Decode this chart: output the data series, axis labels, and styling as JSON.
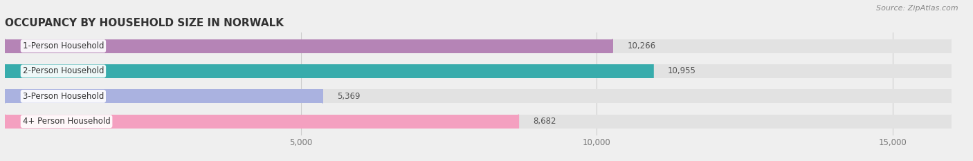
{
  "title": "OCCUPANCY BY HOUSEHOLD SIZE IN NORWALK",
  "source": "Source: ZipAtlas.com",
  "categories": [
    "1-Person Household",
    "2-Person Household",
    "3-Person Household",
    "4+ Person Household"
  ],
  "values": [
    10266,
    10955,
    5369,
    8682
  ],
  "bar_colors": [
    "#b584b6",
    "#38acac",
    "#aab2e0",
    "#f4a0c0"
  ],
  "background_color": "#efefef",
  "bar_bg_color": "#e2e2e2",
  "xlim": [
    0,
    16000
  ],
  "xticks": [
    5000,
    10000,
    15000
  ],
  "xtick_labels": [
    "5,000",
    "10,000",
    "15,000"
  ],
  "value_labels": [
    "10,266",
    "10,955",
    "5,369",
    "8,682"
  ],
  "title_fontsize": 11,
  "label_fontsize": 8.5,
  "tick_fontsize": 8.5,
  "source_fontsize": 8
}
